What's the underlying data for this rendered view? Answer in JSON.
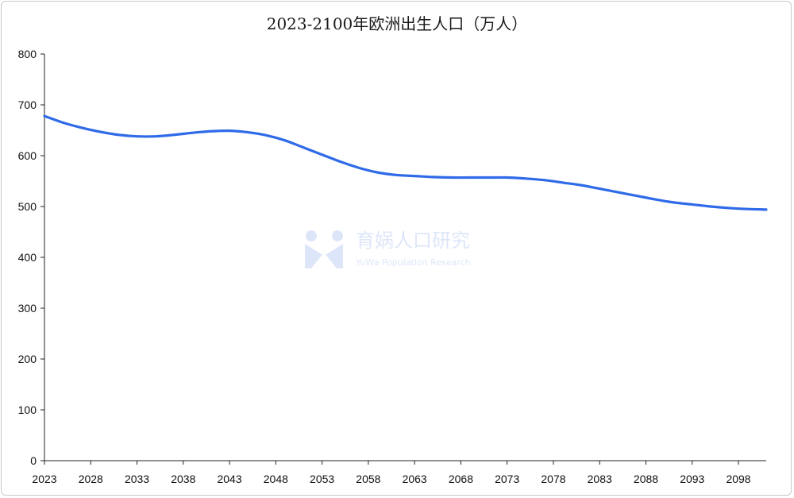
{
  "chart_data": {
    "type": "line",
    "title": "2023-2100年欧洲出生人口（万人）",
    "xlabel": "",
    "ylabel": "",
    "xlim": [
      2023,
      2101
    ],
    "ylim": [
      0,
      800
    ],
    "yticks": [
      0,
      100,
      200,
      300,
      400,
      500,
      600,
      700,
      800
    ],
    "xticks": [
      2023,
      2028,
      2033,
      2038,
      2043,
      2048,
      2053,
      2058,
      2063,
      2068,
      2073,
      2078,
      2083,
      2088,
      2093,
      2098
    ],
    "grid": false,
    "legend": "none",
    "series": [
      {
        "color": "#2f6ae8",
        "x": [
          2023,
          2025,
          2027,
          2029,
          2031,
          2033,
          2035,
          2037,
          2039,
          2041,
          2043,
          2045,
          2047,
          2049,
          2051,
          2053,
          2055,
          2057,
          2059,
          2061,
          2063,
          2065,
          2067,
          2069,
          2071,
          2073,
          2075,
          2077,
          2079,
          2081,
          2083,
          2085,
          2087,
          2089,
          2091,
          2093,
          2095,
          2097,
          2099,
          2101
        ],
        "y": [
          678,
          665,
          655,
          647,
          641,
          638,
          638,
          641,
          645,
          648,
          649,
          646,
          640,
          630,
          616,
          602,
          588,
          576,
          567,
          562,
          560,
          558,
          557,
          557,
          557,
          557,
          555,
          552,
          547,
          542,
          535,
          528,
          521,
          514,
          508,
          504,
          500,
          497,
          495,
          494
        ]
      }
    ]
  },
  "watermark": {
    "main": "育娲人口研究",
    "sub": "YuWa Population Research",
    "logo_color": "#4a78e0"
  }
}
